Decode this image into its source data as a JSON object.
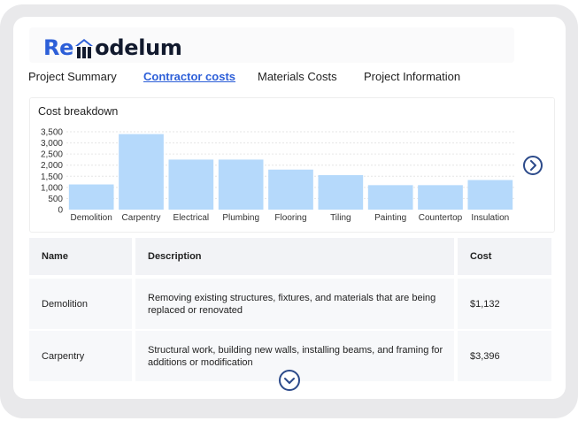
{
  "brand": {
    "logo_prefix": "Re",
    "logo_suffix": "odelum",
    "logo_full": "Remodelum"
  },
  "tabs": [
    {
      "label": "Project Summary",
      "active": false
    },
    {
      "label": "Contractor costs",
      "active": true
    },
    {
      "label": "Materials Costs",
      "active": false
    },
    {
      "label": "Project Information",
      "active": false
    }
  ],
  "chart_title": "Cost breakdown",
  "chart_data": {
    "type": "bar",
    "title": "Cost breakdown",
    "categories": [
      "Demolition",
      "Carpentry",
      "Electrical",
      "Plumbing",
      "Flooring",
      "Tiling",
      "Painting",
      "Countertop",
      "Insulation"
    ],
    "values": [
      1132,
      3396,
      2250,
      2250,
      1800,
      1550,
      1100,
      1100,
      1330
    ],
    "ylim": [
      0,
      3500
    ],
    "yticks": [
      0,
      500,
      1000,
      1500,
      2000,
      2500,
      3000,
      3500
    ],
    "ytick_labels": [
      "0",
      "500",
      "1,000",
      "1,500",
      "2,000",
      "2,500",
      "3,000",
      "3,500"
    ],
    "xlabel": "",
    "ylabel": "",
    "grid": true,
    "bar_color": "#b5d9fb"
  },
  "icons": {
    "next": "chevron-right-circle-icon",
    "more": "chevron-down-circle-icon"
  },
  "table": {
    "headers": {
      "name": "Name",
      "description": "Description",
      "cost": "Cost"
    },
    "rows": [
      {
        "name": "Demolition",
        "description": "Removing existing structures, fixtures, and materials that are being replaced or renovated",
        "cost": "$1,132"
      },
      {
        "name": "Carpentry",
        "description": "Structural work, building new walls, installing beams, and framing for additions or modification",
        "cost": "$3,396"
      }
    ]
  },
  "colors": {
    "accent": "#2d5fd8",
    "dark": "#121a2e",
    "button": "#2c4a8a",
    "bar": "#b5d9fb",
    "header_bg": "#f2f3f6",
    "row_bg": "#f7f8fa"
  }
}
